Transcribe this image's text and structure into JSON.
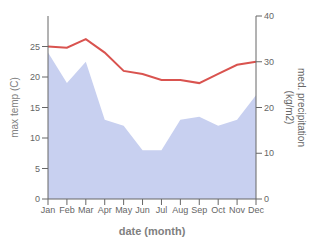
{
  "chart_data": {
    "type": "line",
    "xlabel": "date (month)",
    "ylabel": "max temp (C)",
    "y2label": "med. precipitation\n(kg/m2)",
    "categories": [
      "Jan",
      "Feb",
      "Mar",
      "Apr",
      "May",
      "Jun",
      "Jul",
      "Aug",
      "Sep",
      "Oct",
      "Nov",
      "Dec"
    ],
    "series": [
      {
        "type": "area",
        "color": "#c8d0f0",
        "values": [
          24.0,
          19.0,
          22.5,
          13.0,
          12.0,
          8.0,
          8.0,
          13.0,
          13.5,
          12.0,
          13.0,
          17.0
        ]
      },
      {
        "type": "line",
        "color": "#d9534f",
        "values": [
          25.0,
          24.8,
          26.2,
          24.0,
          21.0,
          20.5,
          19.5,
          19.5,
          19.0,
          20.5,
          22.0,
          22.5
        ]
      }
    ],
    "ylim": [
      0,
      30
    ],
    "yticks": [
      0,
      5,
      10,
      15,
      20,
      25
    ],
    "y2lim": [
      0,
      40
    ],
    "y2ticks": [
      0,
      10,
      20,
      30,
      40
    ]
  }
}
